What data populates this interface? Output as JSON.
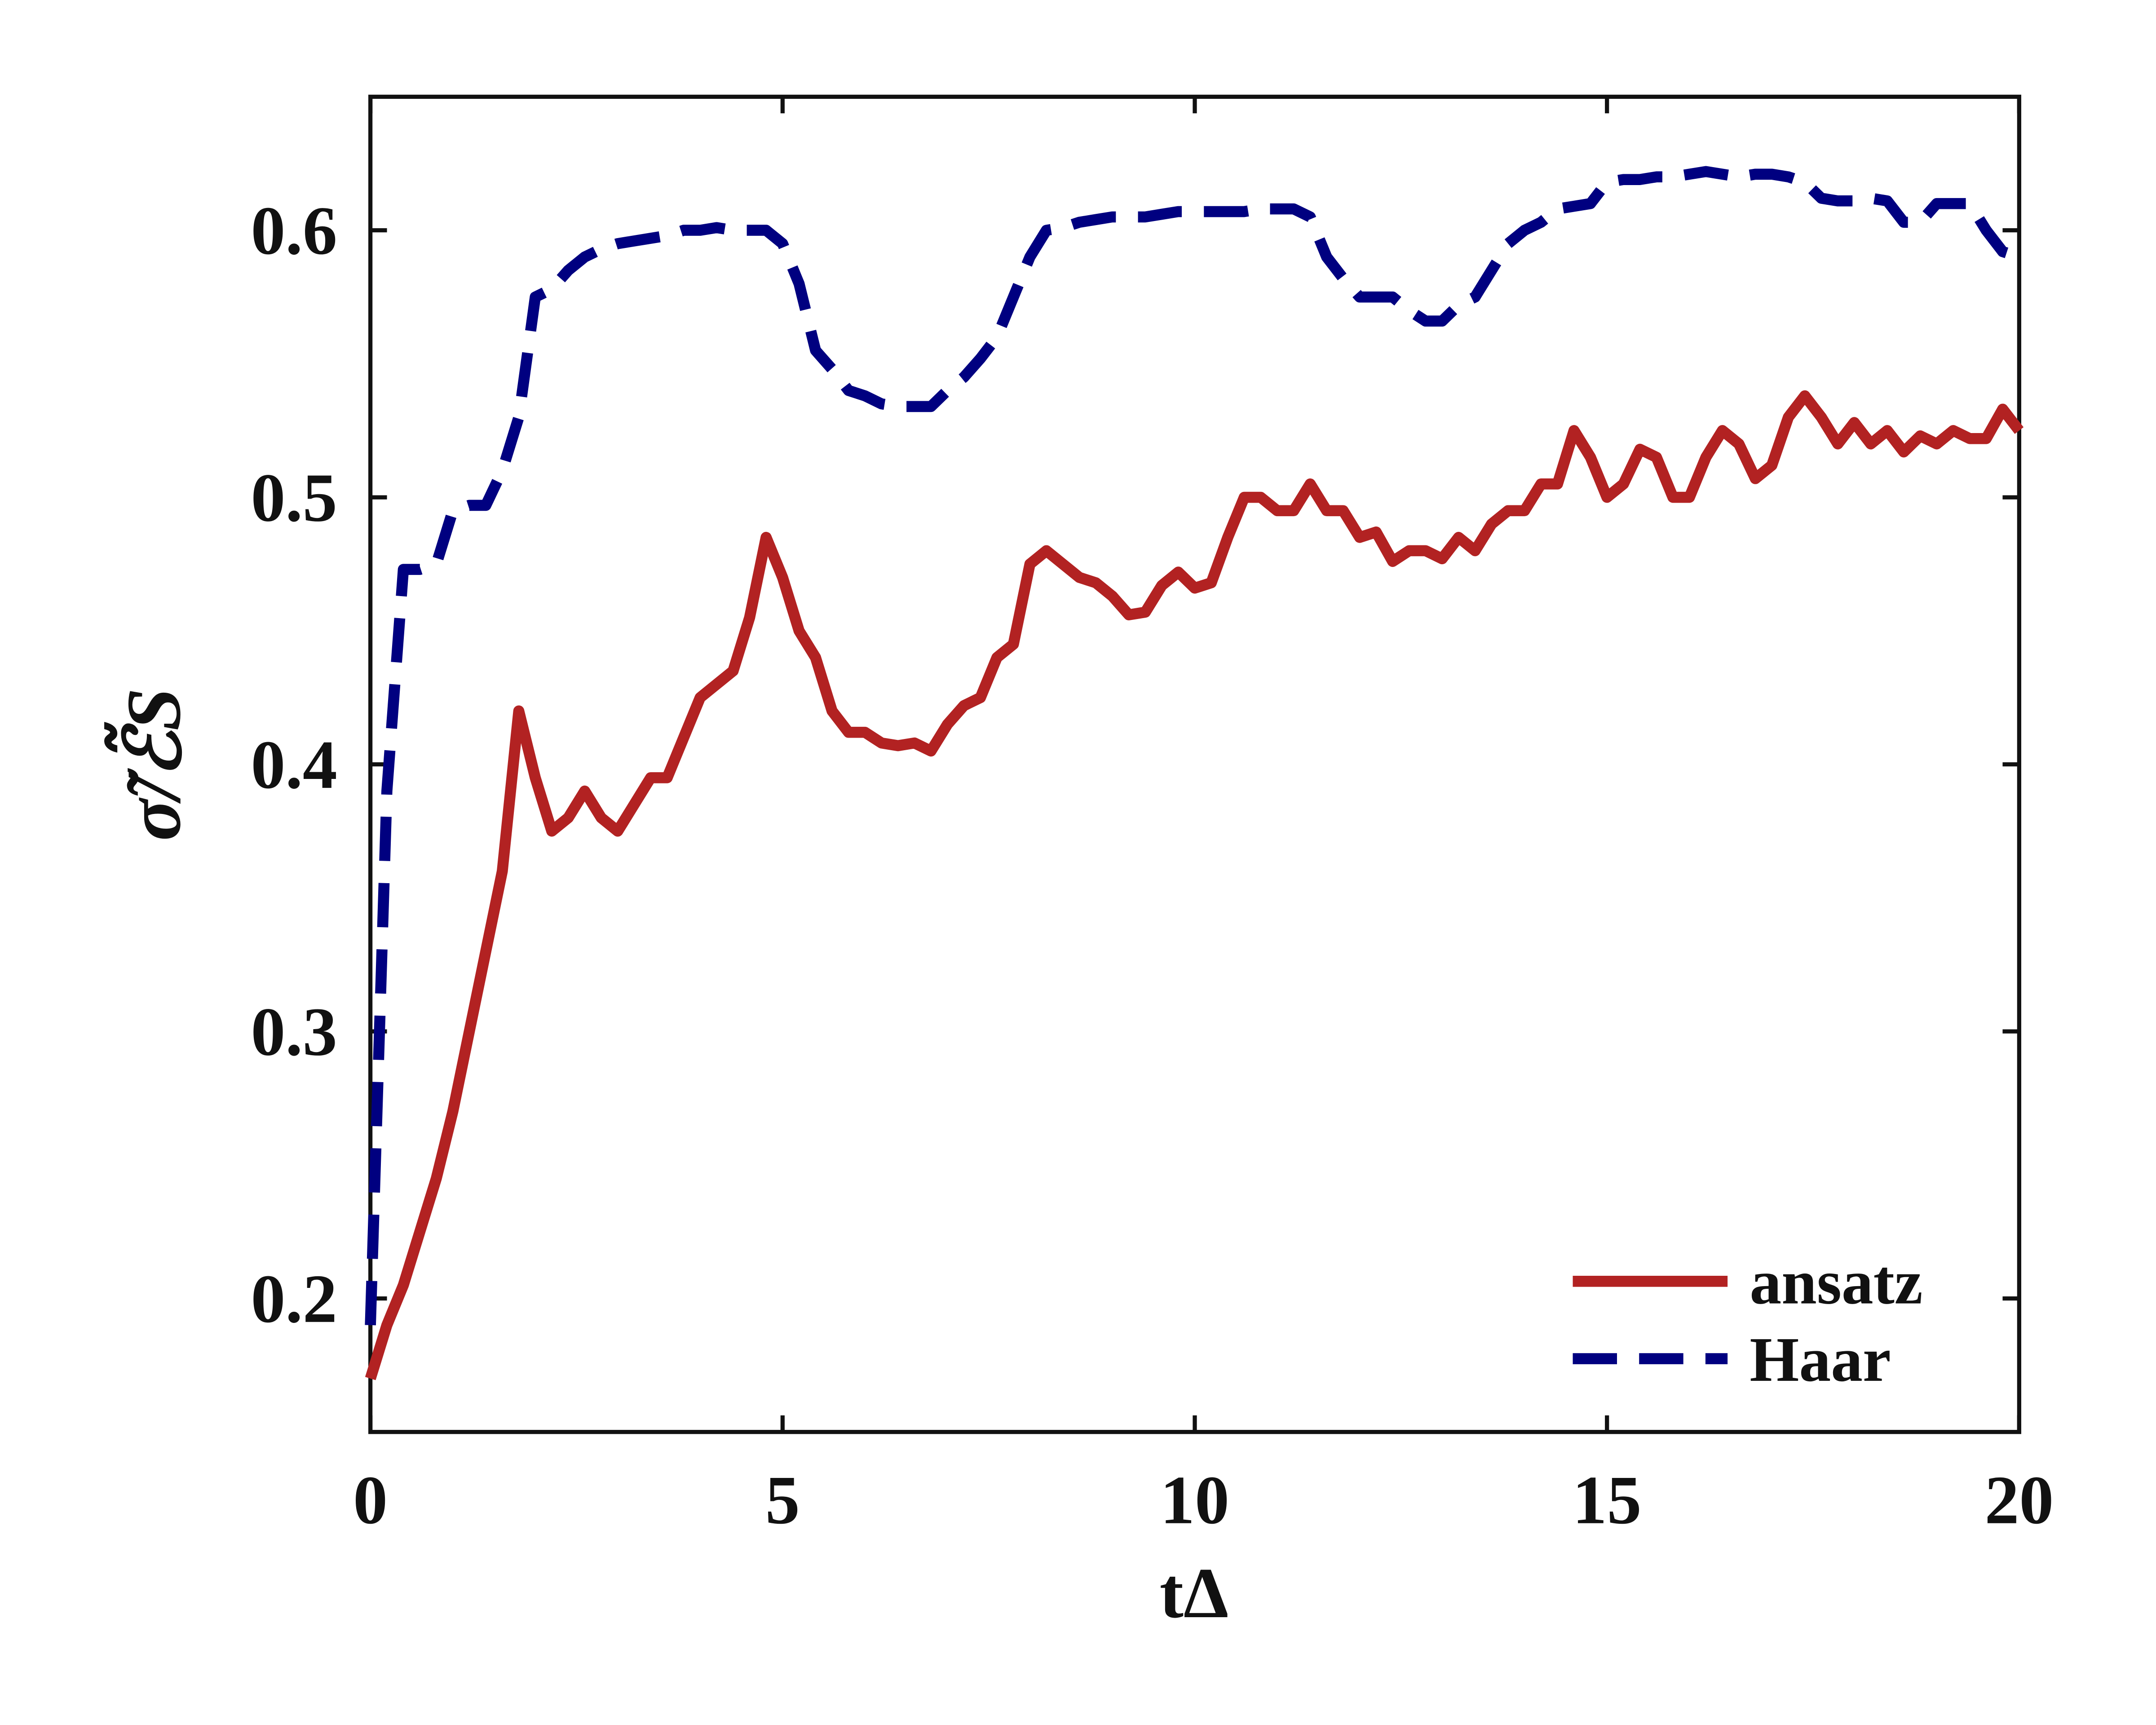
{
  "chart_data": {
    "type": "line",
    "xlabel": "tΔ",
    "ylabel": "σ̃/ℰ̃S",
    "x": [
      0,
      0.2,
      0.4,
      0.6,
      0.8,
      1,
      1.2,
      1.4,
      1.6,
      1.8,
      2,
      2.2,
      2.4,
      2.6,
      2.8,
      3,
      3.2,
      3.4,
      3.6,
      3.8,
      4,
      4.2,
      4.4,
      4.6,
      4.8,
      5,
      5.2,
      5.4,
      5.6,
      5.8,
      6,
      6.2,
      6.4,
      6.6,
      6.8,
      7,
      7.2,
      7.4,
      7.6,
      7.8,
      8,
      8.2,
      8.4,
      8.6,
      8.8,
      9,
      9.2,
      9.4,
      9.6,
      9.8,
      10,
      10.2,
      10.4,
      10.6,
      10.8,
      11,
      11.2,
      11.4,
      11.6,
      11.8,
      12,
      12.2,
      12.4,
      12.6,
      12.8,
      13,
      13.2,
      13.4,
      13.6,
      13.8,
      14,
      14.2,
      14.4,
      14.6,
      14.8,
      15,
      15.2,
      15.4,
      15.6,
      15.8,
      16,
      16.2,
      16.4,
      16.6,
      16.8,
      17,
      17.2,
      17.4,
      17.6,
      17.8,
      18,
      18.2,
      18.4,
      18.6,
      18.8,
      19,
      19.2,
      19.4,
      19.6,
      19.8,
      20
    ],
    "series": [
      {
        "name": "ansatz",
        "color": "#b22222",
        "dash": false,
        "values": [
          0.17,
          0.19,
          0.205,
          0.225,
          0.245,
          0.27,
          0.3,
          0.33,
          0.36,
          0.42,
          0.395,
          0.375,
          0.38,
          0.39,
          0.38,
          0.375,
          0.385,
          0.395,
          0.395,
          0.41,
          0.425,
          0.43,
          0.435,
          0.455,
          0.485,
          0.47,
          0.45,
          0.44,
          0.42,
          0.412,
          0.412,
          0.408,
          0.407,
          0.408,
          0.405,
          0.415,
          0.422,
          0.425,
          0.44,
          0.445,
          0.475,
          0.48,
          0.475,
          0.47,
          0.468,
          0.463,
          0.456,
          0.457,
          0.467,
          0.472,
          0.466,
          0.468,
          0.485,
          0.5,
          0.5,
          0.495,
          0.495,
          0.505,
          0.495,
          0.495,
          0.485,
          0.487,
          0.476,
          0.48,
          0.48,
          0.477,
          0.485,
          0.48,
          0.49,
          0.495,
          0.495,
          0.505,
          0.505,
          0.525,
          0.515,
          0.5,
          0.505,
          0.518,
          0.515,
          0.5,
          0.5,
          0.515,
          0.525,
          0.52,
          0.507,
          0.512,
          0.53,
          0.538,
          0.53,
          0.52,
          0.528,
          0.52,
          0.525,
          0.517,
          0.523,
          0.52,
          0.525,
          0.522,
          0.522,
          0.533,
          0.525
        ]
      },
      {
        "name": "Haar",
        "color": "#000080",
        "dash": true,
        "values": [
          0.19,
          0.39,
          0.473,
          0.473,
          0.475,
          0.495,
          0.497,
          0.497,
          0.51,
          0.53,
          0.575,
          0.578,
          0.585,
          0.59,
          0.593,
          0.595,
          0.596,
          0.597,
          0.598,
          0.6,
          0.6,
          0.601,
          0.6,
          0.6,
          0.6,
          0.595,
          0.58,
          0.555,
          0.548,
          0.54,
          0.538,
          0.535,
          0.534,
          0.534,
          0.534,
          0.54,
          0.545,
          0.552,
          0.56,
          0.575,
          0.59,
          0.6,
          0.601,
          0.603,
          0.604,
          0.605,
          0.605,
          0.605,
          0.606,
          0.607,
          0.607,
          0.607,
          0.607,
          0.607,
          0.608,
          0.608,
          0.608,
          0.605,
          0.59,
          0.582,
          0.575,
          0.575,
          0.575,
          0.57,
          0.566,
          0.566,
          0.572,
          0.575,
          0.585,
          0.595,
          0.6,
          0.603,
          0.608,
          0.609,
          0.61,
          0.618,
          0.619,
          0.619,
          0.62,
          0.62,
          0.621,
          0.622,
          0.621,
          0.62,
          0.621,
          0.621,
          0.62,
          0.618,
          0.612,
          0.611,
          0.611,
          0.612,
          0.611,
          0.603,
          0.603,
          0.61,
          0.61,
          0.61,
          0.6,
          0.592,
          0.59
        ]
      }
    ],
    "xlim": [
      0,
      20
    ],
    "xticks": [
      0,
      5,
      10,
      15,
      20
    ],
    "ylim": [
      0.15,
      0.65
    ],
    "yticks": [
      0.2,
      0.3,
      0.4,
      0.5,
      0.6
    ],
    "grid": false,
    "legend": "lower right"
  }
}
